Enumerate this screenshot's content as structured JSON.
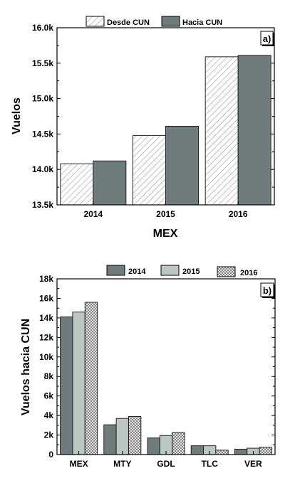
{
  "chart_data": [
    {
      "type": "bar",
      "panel_label": "a)",
      "xlabel": "MEX",
      "ylabel": "Vuelos",
      "categories": [
        "2014",
        "2015",
        "2016"
      ],
      "ylim": [
        13500,
        16000
      ],
      "yticks": [
        13500,
        14000,
        14500,
        15000,
        15500,
        16000
      ],
      "ytick_labels": [
        "13.5k",
        "14.0k",
        "14.5k",
        "15.0k",
        "15.5k",
        "16.0k"
      ],
      "legend_placement": "top",
      "series": [
        {
          "name": "Desde CUN",
          "pattern": "diagonal-hatch",
          "values": [
            14080,
            14480,
            15590
          ]
        },
        {
          "name": "Hacia CUN",
          "color": "#6f7c7b",
          "values": [
            14120,
            14610,
            15610
          ]
        }
      ]
    },
    {
      "type": "bar",
      "panel_label": "b)",
      "xlabel": "",
      "ylabel": "Vuelos hacia CUN",
      "categories": [
        "MEX",
        "MTY",
        "GDL",
        "TLC",
        "VER"
      ],
      "ylim": [
        0,
        18000
      ],
      "yticks": [
        0,
        2000,
        4000,
        6000,
        8000,
        10000,
        12000,
        14000,
        16000,
        18000
      ],
      "ytick_labels": [
        "0",
        "2k",
        "4k",
        "6k",
        "8k",
        "10k",
        "12k",
        "14k",
        "16k",
        "18k"
      ],
      "legend_placement": "top",
      "series": [
        {
          "name": "2014",
          "color": "#6f7c7b",
          "values": [
            14100,
            3050,
            1700,
            900,
            550
          ]
        },
        {
          "name": "2015",
          "color": "#bcc7c3",
          "values": [
            14600,
            3700,
            1950,
            900,
            650
          ]
        },
        {
          "name": "2016",
          "pattern": "crosshatch",
          "values": [
            15600,
            3900,
            2250,
            450,
            750
          ]
        }
      ]
    }
  ]
}
